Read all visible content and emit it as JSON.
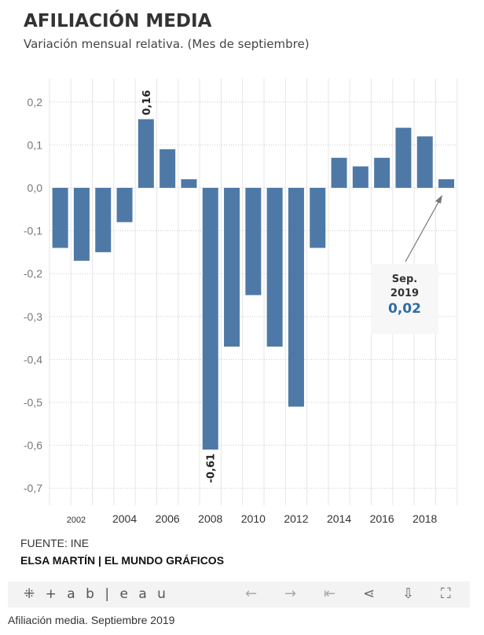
{
  "header": {
    "title": "AFILIACIÓN MEDIA",
    "subtitle": "Variación mensual relativa. (Mes de septiembre)"
  },
  "chart_data": {
    "type": "bar",
    "title": "AFILIACIÓN MEDIA",
    "categories": [
      2001,
      2002,
      2003,
      2004,
      2005,
      2006,
      2007,
      2008,
      2009,
      2010,
      2011,
      2012,
      2013,
      2014,
      2015,
      2016,
      2017,
      2018,
      2019
    ],
    "values": [
      -0.14,
      -0.17,
      -0.15,
      -0.08,
      0.16,
      0.09,
      0.02,
      -0.61,
      -0.37,
      -0.25,
      -0.37,
      -0.51,
      -0.14,
      0.07,
      0.05,
      0.07,
      0.14,
      0.12,
      0.02
    ],
    "ylim": [
      -0.75,
      0.25
    ],
    "yticks": [
      0.2,
      0.1,
      0.0,
      -0.1,
      -0.2,
      -0.3,
      -0.4,
      -0.5,
      -0.6,
      -0.7
    ],
    "ytick_labels": [
      "0,2",
      "0,1",
      "0,0",
      "-0,1",
      "-0,2",
      "-0,3",
      "-0,4",
      "-0,5",
      "-0,6",
      "-0,7"
    ],
    "xtick_labels": [
      "2002",
      "2004",
      "2006",
      "2008",
      "2010",
      "2012",
      "2014",
      "2016",
      "2018"
    ],
    "data_labels": [
      {
        "year": 2005,
        "text": "0,16"
      },
      {
        "year": 2008,
        "text": "-0,61"
      }
    ],
    "annotation": {
      "line1": "Sep.",
      "line2": "2019",
      "value": "0,02"
    },
    "bar_color": "#4e79a7",
    "grid": true
  },
  "footer": {
    "source": "FUENTE: INE",
    "author": "ELSA MARTÍN | EL MUNDO GRÁFICOS",
    "caption": "Afiliación media. Septiembre 2019"
  },
  "toolbar": {
    "logo": "+ a b | e a u",
    "back": "←",
    "forward": "→",
    "first": "⇤",
    "share": "share",
    "download": "download",
    "fullscreen": "fullscreen"
  }
}
